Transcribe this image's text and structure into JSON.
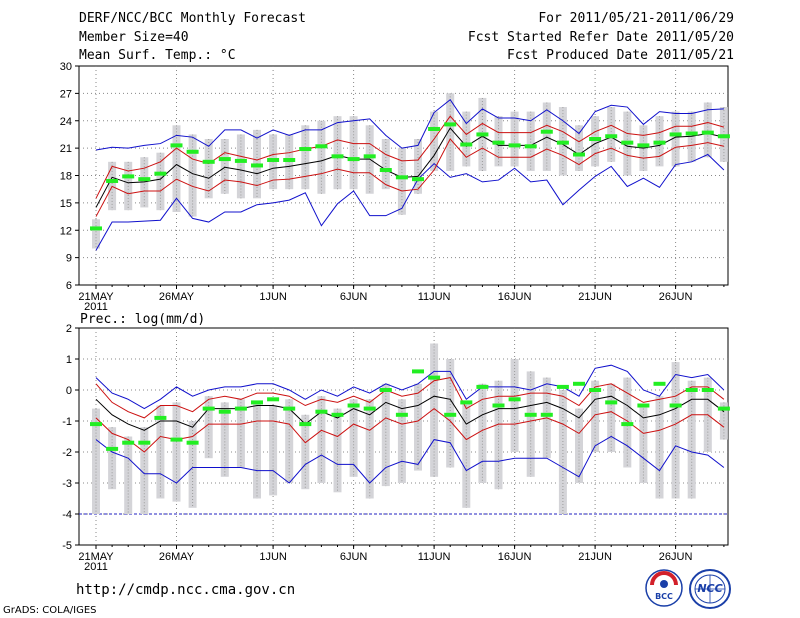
{
  "header": {
    "title": "DERF/NCC/BCC Monthly Forecast",
    "member_size": "Member Size=40",
    "variable": "Mean Surf. Temp.: °C",
    "forecast_period": "For 2011/05/21-2011/06/29",
    "start_refer": "Fcst Started Refer Date 2011/05/20",
    "produced": "Fcst Produced Date 2011/05/21"
  },
  "footer": {
    "url": "http://cmdp.ncc.cma.gov.cn",
    "credit": "GrADS: COLA/IGES",
    "logo_bcc": "BCC",
    "logo_ncc": "NCC"
  },
  "colors": {
    "spread": "#d4d4d8",
    "member": "#9b9b9b",
    "mean": "#000000",
    "sd": "#cc1111",
    "extreme": "#1010cc",
    "median": "#22ee22"
  },
  "chart_data": [
    {
      "type": "line",
      "name": "temperature",
      "ylabel": "Mean Surf. Temp.: °C",
      "ylim": [
        6,
        30
      ],
      "yticks": [
        6,
        9,
        12,
        15,
        18,
        21,
        24,
        27,
        30
      ],
      "x_tick_labels": [
        {
          "day": 1,
          "label": "21MAY",
          "sub": "2011"
        },
        {
          "day": 6,
          "label": "26MAY"
        },
        {
          "day": 12,
          "label": "1JUN"
        },
        {
          "day": 17,
          "label": "6JUN"
        },
        {
          "day": 22,
          "label": "11JUN"
        },
        {
          "day": 27,
          "label": "16JUN"
        },
        {
          "day": 32,
          "label": "21JUN"
        },
        {
          "day": 37,
          "label": "26JUN"
        }
      ],
      "days": 40,
      "series": [
        {
          "name": "mean",
          "values": [
            14.5,
            17.8,
            17.2,
            17.3,
            17.6,
            19.2,
            18.2,
            17.7,
            18.9,
            18.6,
            18.2,
            18.8,
            19.0,
            19.3,
            19.6,
            20.2,
            19.8,
            19.8,
            18.6,
            17.8,
            17.9,
            20.2,
            23.2,
            21.2,
            22.3,
            21.3,
            21.3,
            21.3,
            22.2,
            21.4,
            20.3,
            21.5,
            22.2,
            21.2,
            21.0,
            21.3,
            22.2,
            22.3,
            22.6,
            22.2
          ]
        },
        {
          "name": "mean_plus_sd",
          "values": [
            15.5,
            19.0,
            18.5,
            18.8,
            19.5,
            21.0,
            19.8,
            19.3,
            20.5,
            20.1,
            19.7,
            20.3,
            20.5,
            20.9,
            21.2,
            21.9,
            21.5,
            21.5,
            20.3,
            19.6,
            19.7,
            22.0,
            24.5,
            22.5,
            23.7,
            22.7,
            22.7,
            22.7,
            23.5,
            22.8,
            21.7,
            22.8,
            23.5,
            22.6,
            22.4,
            22.7,
            23.4,
            23.4,
            23.8,
            23.3
          ]
        },
        {
          "name": "mean_minus_sd",
          "values": [
            13.5,
            16.8,
            16.0,
            16.3,
            16.3,
            17.6,
            16.8,
            16.3,
            17.5,
            17.3,
            16.9,
            17.5,
            17.6,
            17.9,
            18.2,
            18.7,
            18.3,
            18.3,
            17.0,
            16.3,
            16.5,
            18.6,
            22.0,
            20.0,
            21.0,
            20.0,
            20.0,
            20.0,
            20.9,
            20.2,
            19.2,
            20.4,
            21.0,
            20.2,
            19.9,
            20.1,
            21.1,
            21.3,
            21.6,
            21.2
          ]
        },
        {
          "name": "max",
          "values": [
            20.8,
            21.1,
            21.0,
            21.3,
            21.5,
            22.4,
            22.2,
            21.2,
            23.0,
            23.0,
            22.1,
            23.0,
            22.4,
            23.0,
            23.0,
            23.8,
            24.0,
            24.2,
            22.4,
            21.0,
            21.3,
            24.9,
            26.3,
            23.7,
            25.3,
            24.3,
            24.3,
            24.0,
            25.2,
            24.0,
            22.6,
            25.0,
            25.7,
            25.5,
            23.6,
            25.0,
            24.8,
            24.8,
            25.2,
            25.3
          ]
        },
        {
          "name": "min",
          "values": [
            9.8,
            12.9,
            12.9,
            13.0,
            13.1,
            15.5,
            13.3,
            12.9,
            14.0,
            14.0,
            14.8,
            15.0,
            15.3,
            16.1,
            12.5,
            14.9,
            16.3,
            13.6,
            13.6,
            14.4,
            17.6,
            19.3,
            17.8,
            18.2,
            17.3,
            17.5,
            18.8,
            17.3,
            17.5,
            14.8,
            16.4,
            17.9,
            19.0,
            16.8,
            17.7,
            16.7,
            19.2,
            19.5,
            20.3,
            18.6
          ]
        },
        {
          "name": "spread_low",
          "values": [
            10.0,
            14.2,
            14.2,
            14.5,
            14.2,
            14.0,
            13.5,
            15.5,
            16.0,
            15.5,
            15.5,
            16.5,
            16.5,
            16.5,
            16.0,
            16.5,
            16.5,
            16.0,
            16.5,
            13.7,
            16.0,
            18.5,
            18.5,
            19.0,
            18.5,
            19.0,
            19.0,
            18.5,
            18.5,
            18.0,
            18.5,
            19.0,
            19.5,
            18.0,
            18.5,
            19.0,
            19.0,
            19.5,
            20.0,
            19.5
          ]
        },
        {
          "name": "spread_high",
          "values": [
            13.2,
            19.5,
            19.5,
            20.0,
            20.5,
            23.5,
            22.5,
            22.0,
            22.0,
            22.5,
            23.0,
            22.5,
            22.5,
            23.5,
            24.0,
            24.5,
            24.5,
            23.5,
            22.0,
            21.0,
            22.0,
            25.0,
            27.0,
            25.0,
            26.5,
            24.5,
            25.0,
            25.0,
            26.0,
            25.5,
            23.5,
            24.5,
            25.5,
            25.0,
            23.5,
            24.5,
            25.0,
            25.0,
            26.0,
            25.5
          ]
        },
        {
          "name": "median",
          "values": [
            12.2,
            17.4,
            17.9,
            17.6,
            18.2,
            21.3,
            20.6,
            19.5,
            19.8,
            19.6,
            19.1,
            19.7,
            19.7,
            20.9,
            21.2,
            20.1,
            19.8,
            20.1,
            18.6,
            17.8,
            17.6,
            23.1,
            23.6,
            21.4,
            22.5,
            21.6,
            21.3,
            21.2,
            22.8,
            21.6,
            20.3,
            22.0,
            22.3,
            21.6,
            21.3,
            21.6,
            22.5,
            22.6,
            22.7,
            22.3
          ]
        }
      ]
    },
    {
      "type": "line",
      "name": "precipitation",
      "ylabel": "Prec.: log(mm/d)",
      "ylim": [
        -5,
        2
      ],
      "yticks": [
        -5,
        -4,
        -3,
        -2,
        -1,
        0,
        1,
        2
      ],
      "x_tick_labels": [
        {
          "day": 1,
          "label": "21MAY",
          "sub": "2011"
        },
        {
          "day": 6,
          "label": "26MAY"
        },
        {
          "day": 12,
          "label": "1JUN"
        },
        {
          "day": 17,
          "label": "6JUN"
        },
        {
          "day": 22,
          "label": "11JUN"
        },
        {
          "day": 27,
          "label": "16JUN"
        },
        {
          "day": 32,
          "label": "21JUN"
        },
        {
          "day": 37,
          "label": "26JUN"
        }
      ],
      "days": 40,
      "series": [
        {
          "name": "mean",
          "values": [
            -0.3,
            -0.8,
            -1.1,
            -1.3,
            -1.0,
            -1.0,
            -1.2,
            -0.6,
            -0.6,
            -0.6,
            -0.5,
            -0.5,
            -0.6,
            -1.1,
            -0.7,
            -0.9,
            -0.6,
            -0.8,
            -0.4,
            -0.6,
            -0.5,
            -0.2,
            -0.3,
            -1.1,
            -0.8,
            -0.6,
            -0.6,
            -0.5,
            -0.4,
            -0.6,
            -0.9,
            -0.3,
            -0.2,
            -0.5,
            -0.9,
            -0.8,
            -0.6,
            -0.3,
            -0.3,
            -0.7
          ]
        },
        {
          "name": "mean_plus_sd",
          "values": [
            0.2,
            -0.4,
            -0.7,
            -0.9,
            -0.5,
            -0.5,
            -0.7,
            -0.3,
            -0.2,
            -0.3,
            -0.1,
            -0.1,
            -0.2,
            -0.5,
            -0.3,
            -0.4,
            -0.2,
            -0.4,
            0.0,
            -0.2,
            -0.1,
            0.3,
            0.4,
            -0.6,
            -0.3,
            -0.2,
            -0.2,
            -0.1,
            -0.1,
            -0.2,
            -0.5,
            0.1,
            0.2,
            -0.1,
            -0.4,
            -0.3,
            -0.2,
            0.1,
            0.1,
            -0.3
          ]
        },
        {
          "name": "mean_minus_sd",
          "values": [
            -0.9,
            -1.4,
            -1.6,
            -2.0,
            -1.5,
            -1.6,
            -1.5,
            -1.1,
            -1.1,
            -1.1,
            -1.0,
            -1.0,
            -1.1,
            -1.7,
            -1.3,
            -1.5,
            -1.1,
            -1.3,
            -0.9,
            -1.1,
            -1.0,
            -0.6,
            -1.0,
            -1.6,
            -1.3,
            -1.1,
            -1.1,
            -1.0,
            -0.9,
            -1.1,
            -1.4,
            -0.8,
            -0.7,
            -1.0,
            -1.4,
            -1.3,
            -1.1,
            -0.8,
            -0.8,
            -1.2
          ]
        },
        {
          "name": "max",
          "values": [
            0.4,
            -0.1,
            -0.3,
            -0.6,
            -0.3,
            0.1,
            -0.2,
            0.0,
            0.1,
            0.1,
            0.2,
            0.2,
            0.0,
            -0.3,
            0.0,
            -0.2,
            0.1,
            -0.1,
            0.2,
            0.0,
            0.2,
            0.6,
            0.6,
            -0.3,
            0.1,
            0.1,
            0.1,
            0.0,
            0.2,
            0.1,
            -0.2,
            0.7,
            0.8,
            0.6,
            0.0,
            -0.2,
            0.5,
            0.4,
            0.5,
            0.0
          ]
        },
        {
          "name": "min",
          "values": [
            -1.6,
            -2.0,
            -2.2,
            -2.7,
            -2.7,
            -3.0,
            -2.5,
            -2.5,
            -2.5,
            -2.5,
            -2.6,
            -2.6,
            -3.0,
            -2.4,
            -2.1,
            -2.4,
            -2.4,
            -3.0,
            -2.5,
            -2.3,
            -2.4,
            -1.6,
            -1.7,
            -2.6,
            -2.3,
            -2.3,
            -2.2,
            -2.2,
            -2.2,
            -2.5,
            -2.8,
            -1.8,
            -1.5,
            -1.8,
            -2.2,
            -2.6,
            -1.8,
            -2.0,
            -2.1,
            -2.5
          ]
        },
        {
          "name": "spread_low",
          "values": [
            -4.0,
            -3.2,
            -4.0,
            -4.0,
            -3.5,
            -3.6,
            -3.8,
            -2.2,
            -2.8,
            -2.5,
            -3.5,
            -3.4,
            -3.0,
            -3.2,
            -3.0,
            -3.3,
            -2.8,
            -3.5,
            -3.1,
            -3.0,
            -2.6,
            -2.8,
            -2.5,
            -3.8,
            -3.0,
            -3.2,
            -2.0,
            -2.8,
            -2.2,
            -4.0,
            -3.0,
            -2.0,
            -2.0,
            -2.5,
            -3.0,
            -3.5,
            -3.5,
            -3.5,
            -2.0,
            -1.6
          ]
        },
        {
          "name": "spread_high",
          "values": [
            -0.6,
            -1.2,
            -1.5,
            -1.2,
            -0.5,
            -0.4,
            -1.0,
            -0.2,
            -0.4,
            -0.3,
            -0.4,
            -0.5,
            -0.3,
            -0.8,
            -0.2,
            -0.6,
            -0.3,
            -0.3,
            0.2,
            -0.3,
            0.2,
            1.5,
            1.0,
            -0.4,
            0.2,
            0.3,
            1.0,
            0.6,
            0.4,
            0.0,
            -0.6,
            0.3,
            0.2,
            0.4,
            -0.5,
            -0.2,
            0.9,
            0.3,
            0.4,
            -0.4
          ]
        },
        {
          "name": "median",
          "values": [
            -1.1,
            -1.9,
            -1.7,
            -1.7,
            -0.9,
            -1.6,
            -1.7,
            -0.6,
            -0.7,
            -0.6,
            -0.4,
            -0.3,
            -0.6,
            -1.1,
            -0.7,
            -0.8,
            -0.5,
            -0.6,
            0.0,
            -0.8,
            0.6,
            0.4,
            -0.8,
            -0.4,
            0.1,
            -0.5,
            -0.3,
            -0.8,
            -0.8,
            0.1,
            0.2,
            0.0,
            -0.4,
            -1.1,
            -0.5,
            0.2,
            -0.5,
            0.0,
            0.0,
            -0.6
          ]
        }
      ]
    }
  ]
}
